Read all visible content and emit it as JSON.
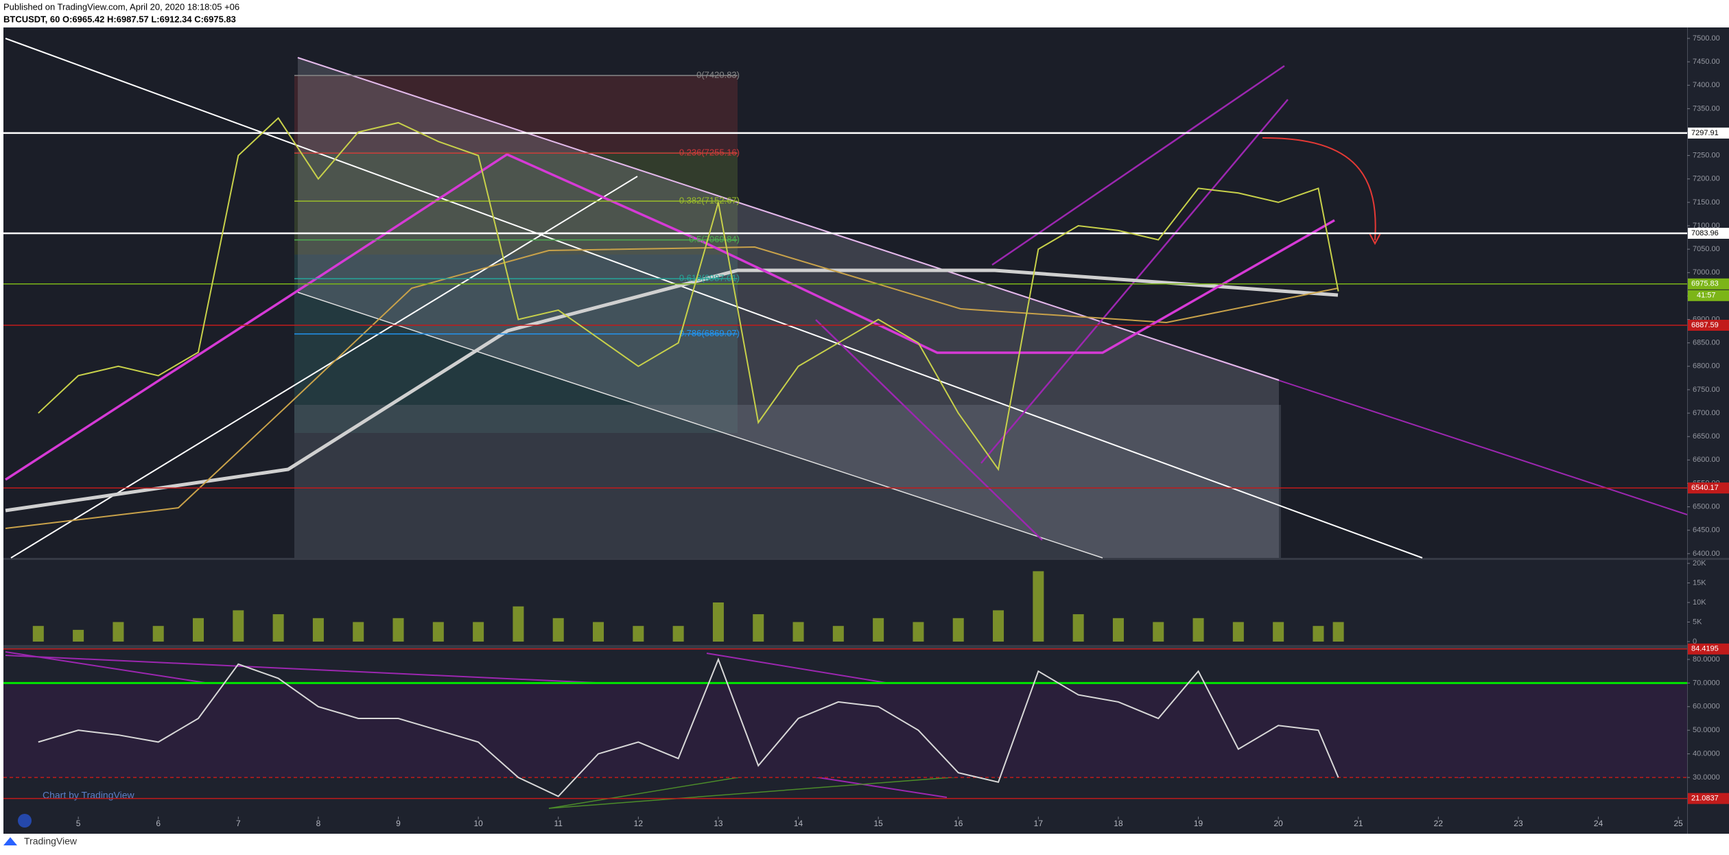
{
  "header": {
    "line1": "Published on TradingView.com, April 20, 2020 18:18:05 +06",
    "line2": "BTCUSDT, 60  O:6965.42 H:6987.57 L:6912.34 C:6975.83"
  },
  "watermark": "Chart by TradingView",
  "footer": "TradingView",
  "chart_data": [
    {
      "type": "line",
      "color": "#c8d14a",
      "xlim": [
        4.09,
        25.11
      ],
      "ylim": [
        6391,
        7519
      ],
      "x": [
        4.5,
        5,
        5.5,
        6,
        6.5,
        7,
        7.5,
        8,
        8.5,
        9,
        9.5,
        10,
        10.5,
        11,
        11.5,
        12,
        12.5,
        13,
        13.5,
        14,
        14.5,
        15,
        15.5,
        16,
        16.5,
        17,
        17.5,
        18,
        18.5,
        19,
        19.5,
        20,
        20.5,
        20.75
      ],
      "values": [
        6700,
        6780,
        6800,
        6780,
        6830,
        7250,
        7330,
        7200,
        7300,
        7320,
        7280,
        7250,
        6900,
        6920,
        6860,
        6800,
        6850,
        7150,
        6680,
        6800,
        6850,
        6900,
        6850,
        6700,
        6580,
        7050,
        7100,
        7090,
        7070,
        7180,
        7170,
        7150,
        7180,
        6960
      ],
      "yticks": [
        {
          "value": 6400,
          "label": "6400.00"
        },
        {
          "value": 6450,
          "label": "6450.00"
        },
        {
          "value": 6500,
          "label": "6500.00"
        },
        {
          "value": 6550,
          "label": "6550.00"
        },
        {
          "value": 6600,
          "label": "6600.00"
        },
        {
          "value": 6650,
          "label": "6650.00"
        },
        {
          "value": 6700,
          "label": "6700.00"
        },
        {
          "value": 6750,
          "label": "6750.00"
        },
        {
          "value": 6800,
          "label": "6800.00"
        },
        {
          "value": 6850,
          "label": "6850.00"
        },
        {
          "value": 6900,
          "label": "6900.00"
        },
        {
          "value": 6950,
          "label": "6950.00"
        },
        {
          "value": 7000,
          "label": "7000.00"
        },
        {
          "value": 7050,
          "label": "7050.00"
        },
        {
          "value": 7100,
          "label": "7100.00"
        },
        {
          "value": 7150,
          "label": "7150.00"
        },
        {
          "value": 7200,
          "label": "7200.00"
        },
        {
          "value": 7250,
          "label": "7250.00"
        },
        {
          "value": 7300,
          "label": "7300.00"
        },
        {
          "value": 7350,
          "label": "7350.00"
        },
        {
          "value": 7400,
          "label": "7400.00"
        },
        {
          "value": 7450,
          "label": "7450.00"
        },
        {
          "value": 7500,
          "label": "7500.00"
        }
      ],
      "levels": [
        {
          "value": 7297.91,
          "color": "#ffffff"
        },
        {
          "value": 7083.96,
          "color": "#ffffff"
        },
        {
          "value": 6975.83,
          "color": "#7cb518"
        },
        {
          "value": 6887.59,
          "color": "#c21b1b"
        },
        {
          "value": 6540.17,
          "color": "#c21b1b"
        }
      ],
      "countdown": "41:57",
      "fib": [
        {
          "label": "0(7420.83)",
          "value": 7420.83,
          "color": "#888888"
        },
        {
          "label": "0.236(7255.16)",
          "value": 7255.16,
          "color": "#d03a3a"
        },
        {
          "label": "0.382(7152.67)",
          "value": 7152.67,
          "color": "#9bbd2a"
        },
        {
          "label": "0.5(7069.84)",
          "value": 7069.84,
          "color": "#4caf50"
        },
        {
          "label": "0.618(6987.01)",
          "value": 6987.01,
          "color": "#26a69a"
        },
        {
          "label": "0.786(6869.07)",
          "value": 6869.07,
          "color": "#2196f3"
        }
      ]
    },
    {
      "type": "bar",
      "color": "#7a8f2a",
      "xlim": [
        4.09,
        25.11
      ],
      "ylim": [
        -880,
        20880
      ],
      "x": [
        4.5,
        5,
        5.5,
        6,
        6.5,
        7,
        7.5,
        8,
        8.5,
        9,
        9.5,
        10,
        10.5,
        11,
        11.5,
        12,
        12.5,
        13,
        13.5,
        14,
        14.5,
        15,
        15.5,
        16,
        16.5,
        17,
        17.5,
        18,
        18.5,
        19,
        19.5,
        20,
        20.5,
        20.75
      ],
      "values": [
        4000,
        3000,
        5000,
        4000,
        6000,
        8000,
        7000,
        6000,
        5000,
        6000,
        5000,
        5000,
        9000,
        6000,
        5000,
        4000,
        4000,
        10000,
        7000,
        5000,
        4000,
        6000,
        5000,
        6000,
        8000,
        18000,
        7000,
        6000,
        5000,
        6000,
        5000,
        5000,
        4000,
        5000
      ],
      "yticks": [
        0,
        {
          "value": 5000,
          "label": "5K"
        },
        {
          "value": 10000,
          "label": "10K"
        },
        {
          "value": 15000,
          "label": "15K"
        },
        {
          "value": 20000,
          "label": "20K"
        }
      ]
    },
    {
      "type": "line",
      "color": "#d8d8d8",
      "xlim": [
        4.09,
        25.11
      ],
      "ylim": [
        15.17,
        84.65
      ],
      "x": [
        4.5,
        5,
        5.5,
        6,
        6.5,
        7,
        7.5,
        8,
        8.5,
        9,
        9.5,
        10,
        10.5,
        11,
        11.5,
        12,
        12.5,
        13,
        13.5,
        14,
        14.5,
        15,
        15.5,
        16,
        16.5,
        17,
        17.5,
        18,
        18.5,
        19,
        19.5,
        20,
        20.5,
        20.75
      ],
      "values": [
        45,
        50,
        48,
        45,
        55,
        78,
        72,
        60,
        55,
        55,
        50,
        45,
        30,
        22,
        40,
        45,
        38,
        80,
        35,
        55,
        62,
        60,
        50,
        32,
        28,
        75,
        65,
        62,
        55,
        75,
        42,
        52,
        50,
        30
      ],
      "yticks": [
        {
          "value": 30,
          "label": "30.0000"
        },
        {
          "value": 40,
          "label": "40.0000"
        },
        {
          "value": 50,
          "label": "50.0000"
        },
        {
          "value": 60,
          "label": "60.0000"
        },
        {
          "value": 70,
          "label": "70.0000"
        },
        {
          "value": 80,
          "label": "80.0000"
        }
      ],
      "overbought": 70,
      "oversold": 30,
      "levels": [
        84.4195,
        21.0837
      ],
      "xticks": [
        5,
        6,
        7,
        8,
        9,
        10,
        11,
        12,
        13,
        14,
        15,
        16,
        17,
        18,
        19,
        20,
        21,
        22,
        23,
        24,
        25
      ]
    }
  ]
}
